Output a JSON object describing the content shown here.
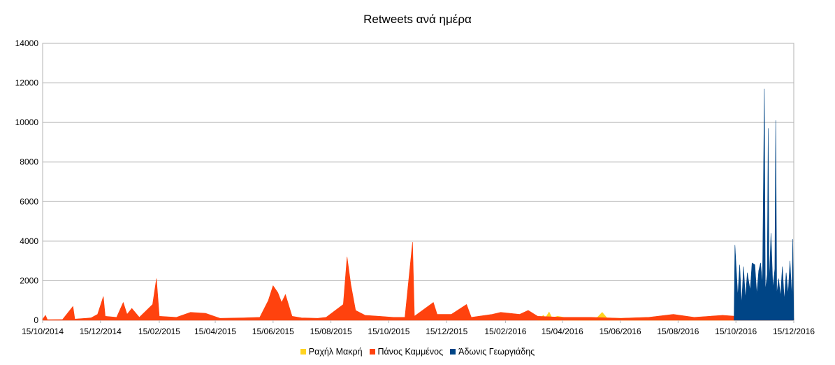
{
  "chart_data": {
    "type": "area",
    "title": "Retweets ανά ημέρα",
    "xlabel": "",
    "ylabel": "",
    "ylim": [
      0,
      14000
    ],
    "yticks": [
      0,
      2000,
      4000,
      6000,
      8000,
      10000,
      12000,
      14000
    ],
    "ytick_labels": [
      "0",
      "2000",
      "4000",
      "6000",
      "8000",
      "10000",
      "12000",
      "14000"
    ],
    "xrange": [
      "2014-10-15",
      "2016-12-15"
    ],
    "xtick_labels": [
      "15/10/2014",
      "15/12/2014",
      "15/02/2015",
      "15/04/2015",
      "15/06/2015",
      "15/08/2015",
      "15/10/2015",
      "15/12/2015",
      "15/02/2016",
      "15/04/2016",
      "15/06/2016",
      "15/08/2016",
      "15/10/2016",
      "15/12/2016"
    ],
    "xtick_dates": [
      "2014-10-15",
      "2014-12-15",
      "2015-02-15",
      "2015-04-15",
      "2015-06-15",
      "2015-08-15",
      "2015-10-15",
      "2015-12-15",
      "2016-02-15",
      "2016-04-15",
      "2016-06-15",
      "2016-08-15",
      "2016-10-15",
      "2016-12-15"
    ],
    "grid": true,
    "legend_position": "bottom",
    "series": [
      {
        "name": "Ραχήλ Μακρή",
        "color": "#ffd320",
        "points": [
          [
            "2016-03-20",
            0
          ],
          [
            "2016-03-26",
            250
          ],
          [
            "2016-03-28",
            100
          ],
          [
            "2016-04-01",
            420
          ],
          [
            "2016-04-04",
            120
          ],
          [
            "2016-04-10",
            200
          ],
          [
            "2016-04-20",
            120
          ],
          [
            "2016-05-01",
            100
          ],
          [
            "2016-05-15",
            90
          ],
          [
            "2016-05-22",
            150
          ],
          [
            "2016-05-27",
            400
          ],
          [
            "2016-06-01",
            120
          ],
          [
            "2016-06-15",
            100
          ],
          [
            "2016-07-01",
            120
          ],
          [
            "2016-07-15",
            150
          ],
          [
            "2016-08-01",
            100
          ],
          [
            "2016-08-15",
            100
          ],
          [
            "2016-09-01",
            150
          ],
          [
            "2016-09-20",
            100
          ],
          [
            "2016-10-10",
            150
          ],
          [
            "2016-10-28",
            200
          ],
          [
            "2016-11-15",
            150
          ],
          [
            "2016-12-01",
            120
          ],
          [
            "2016-12-15",
            80
          ]
        ]
      },
      {
        "name": "Πάνος Καμμένος",
        "color": "#ff420e",
        "points": [
          [
            "2014-10-15",
            50
          ],
          [
            "2014-10-18",
            250
          ],
          [
            "2014-10-20",
            30
          ],
          [
            "2014-11-05",
            40
          ],
          [
            "2014-11-16",
            700
          ],
          [
            "2014-11-18",
            60
          ],
          [
            "2014-12-05",
            120
          ],
          [
            "2014-12-12",
            300
          ],
          [
            "2014-12-18",
            1200
          ],
          [
            "2014-12-20",
            200
          ],
          [
            "2015-01-01",
            150
          ],
          [
            "2015-01-08",
            900
          ],
          [
            "2015-01-12",
            300
          ],
          [
            "2015-01-17",
            600
          ],
          [
            "2015-01-25",
            150
          ],
          [
            "2015-02-08",
            800
          ],
          [
            "2015-02-12",
            2100
          ],
          [
            "2015-02-15",
            200
          ],
          [
            "2015-03-05",
            150
          ],
          [
            "2015-03-20",
            400
          ],
          [
            "2015-04-05",
            350
          ],
          [
            "2015-04-20",
            100
          ],
          [
            "2015-05-15",
            120
          ],
          [
            "2015-06-01",
            150
          ],
          [
            "2015-06-10",
            1000
          ],
          [
            "2015-06-15",
            1750
          ],
          [
            "2015-06-20",
            1400
          ],
          [
            "2015-06-24",
            900
          ],
          [
            "2015-06-28",
            1300
          ],
          [
            "2015-07-05",
            200
          ],
          [
            "2015-07-15",
            120
          ],
          [
            "2015-08-01",
            100
          ],
          [
            "2015-08-10",
            150
          ],
          [
            "2015-08-28",
            800
          ],
          [
            "2015-09-01",
            3200
          ],
          [
            "2015-09-05",
            1800
          ],
          [
            "2015-09-10",
            500
          ],
          [
            "2015-09-20",
            250
          ],
          [
            "2015-10-05",
            200
          ],
          [
            "2015-10-20",
            150
          ],
          [
            "2015-11-01",
            150
          ],
          [
            "2015-11-09",
            3950
          ],
          [
            "2015-11-11",
            200
          ],
          [
            "2015-12-01",
            900
          ],
          [
            "2015-12-05",
            300
          ],
          [
            "2015-12-20",
            300
          ],
          [
            "2016-01-05",
            800
          ],
          [
            "2016-01-10",
            150
          ],
          [
            "2016-02-01",
            300
          ],
          [
            "2016-02-10",
            400
          ],
          [
            "2016-03-01",
            300
          ],
          [
            "2016-03-10",
            500
          ],
          [
            "2016-03-20",
            200
          ],
          [
            "2016-04-15",
            150
          ],
          [
            "2016-05-15",
            150
          ],
          [
            "2016-06-15",
            100
          ],
          [
            "2016-07-15",
            150
          ],
          [
            "2016-08-10",
            300
          ],
          [
            "2016-09-01",
            150
          ],
          [
            "2016-10-01",
            250
          ],
          [
            "2016-10-15",
            200
          ],
          [
            "2016-11-15",
            150
          ],
          [
            "2016-12-01",
            400
          ],
          [
            "2016-12-10",
            250
          ],
          [
            "2016-12-15",
            100
          ]
        ]
      },
      {
        "name": "Άδωνις Γεωργιάδης",
        "color": "#004586",
        "points": [
          [
            "2016-10-13",
            0
          ],
          [
            "2016-10-14",
            3800
          ],
          [
            "2016-10-17",
            1200
          ],
          [
            "2016-10-19",
            2800
          ],
          [
            "2016-10-21",
            800
          ],
          [
            "2016-10-23",
            2700
          ],
          [
            "2016-10-25",
            1100
          ],
          [
            "2016-10-27",
            2400
          ],
          [
            "2016-10-30",
            1500
          ],
          [
            "2016-11-01",
            2900
          ],
          [
            "2016-11-04",
            2800
          ],
          [
            "2016-11-06",
            1300
          ],
          [
            "2016-11-08",
            2500
          ],
          [
            "2016-11-10",
            2900
          ],
          [
            "2016-11-12",
            1800
          ],
          [
            "2016-11-14",
            11700
          ],
          [
            "2016-11-15",
            1500
          ],
          [
            "2016-11-17",
            2300
          ],
          [
            "2016-11-18",
            9700
          ],
          [
            "2016-11-19",
            1800
          ],
          [
            "2016-11-21",
            4400
          ],
          [
            "2016-11-23",
            1600
          ],
          [
            "2016-11-25",
            2600
          ],
          [
            "2016-11-26",
            10100
          ],
          [
            "2016-11-27",
            1300
          ],
          [
            "2016-11-29",
            2100
          ],
          [
            "2016-12-01",
            1200
          ],
          [
            "2016-12-03",
            2700
          ],
          [
            "2016-12-05",
            1000
          ],
          [
            "2016-12-07",
            2400
          ],
          [
            "2016-12-09",
            1300
          ],
          [
            "2016-12-11",
            3000
          ],
          [
            "2016-12-13",
            1100
          ],
          [
            "2016-12-14",
            4100
          ],
          [
            "2016-12-15",
            0
          ]
        ]
      }
    ]
  }
}
